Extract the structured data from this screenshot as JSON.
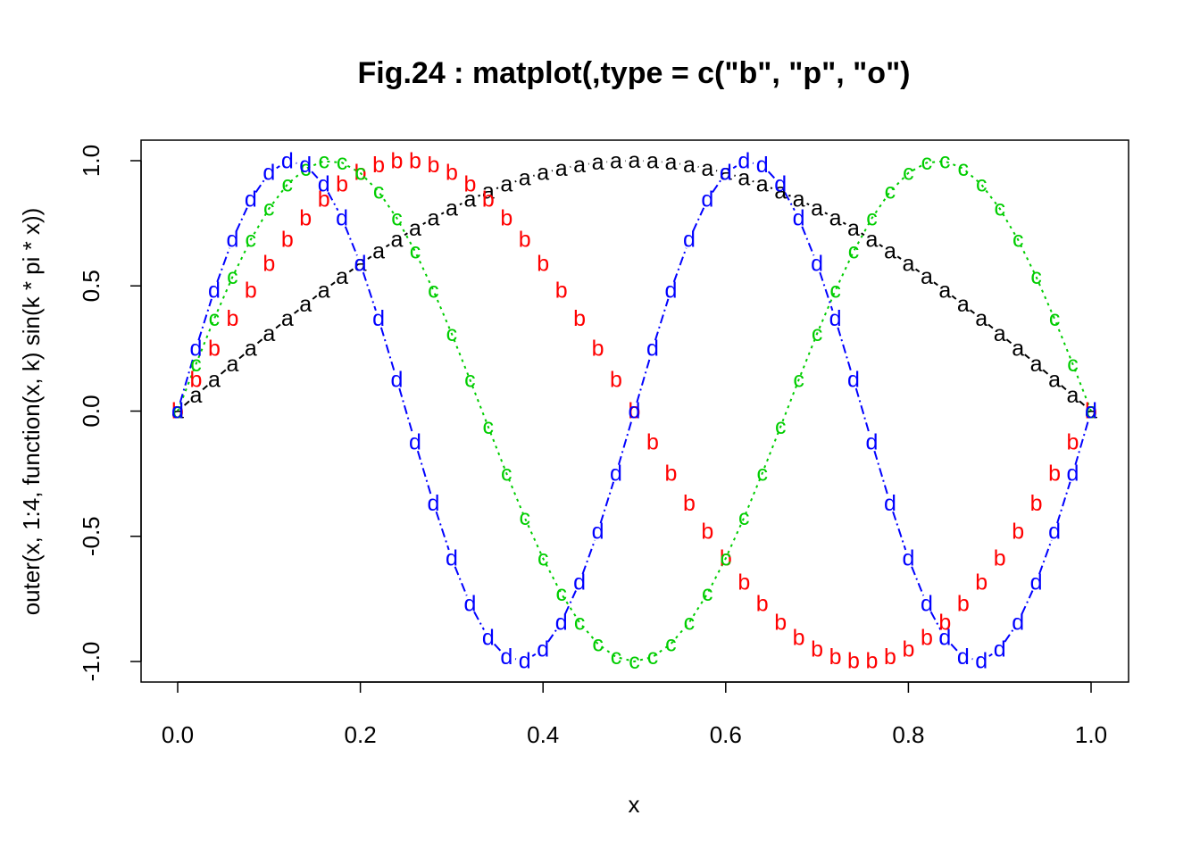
{
  "chart_data": {
    "type": "line",
    "title": "Fig.24 : matplot(,type = c(\"b\", \"p\", \"o\")",
    "xlabel": "x",
    "ylabel": "outer(x, 1:4, function(x, k) sin(k * pi * x))",
    "xlim": [
      0,
      1
    ],
    "ylim": [
      -1,
      1
    ],
    "xticks": [
      "0.0",
      "0.2",
      "0.4",
      "0.6",
      "0.8",
      "1.0"
    ],
    "yticks": [
      "-1.0",
      "-0.5",
      "0.0",
      "0.5",
      "1.0"
    ],
    "grid": false,
    "x": [
      0,
      0.02,
      0.04,
      0.06,
      0.08,
      0.1,
      0.12,
      0.14,
      0.16,
      0.18,
      0.2,
      0.22,
      0.24,
      0.26,
      0.28,
      0.3,
      0.32,
      0.34,
      0.36,
      0.38,
      0.4,
      0.42,
      0.44,
      0.46,
      0.48,
      0.5,
      0.52,
      0.54,
      0.56,
      0.58,
      0.6,
      0.62,
      0.64,
      0.66,
      0.68,
      0.7,
      0.72,
      0.74,
      0.76,
      0.78,
      0.8,
      0.82,
      0.84,
      0.86,
      0.88,
      0.9,
      0.92,
      0.94,
      0.96,
      0.98,
      1.0
    ],
    "series": [
      {
        "marker": "a",
        "color": "#000000",
        "plot_type": "b",
        "k": 1,
        "values": [
          0,
          0.0628,
          0.1253,
          0.1874,
          0.2487,
          0.309,
          0.3681,
          0.4258,
          0.4818,
          0.5358,
          0.5878,
          0.6374,
          0.6845,
          0.729,
          0.7705,
          0.809,
          0.8443,
          0.8763,
          0.9048,
          0.9298,
          0.9511,
          0.9686,
          0.9823,
          0.9921,
          0.998,
          1,
          0.998,
          0.9921,
          0.9823,
          0.9686,
          0.9511,
          0.9298,
          0.9048,
          0.8763,
          0.8443,
          0.809,
          0.7705,
          0.729,
          0.6845,
          0.6374,
          0.5878,
          0.5358,
          0.4818,
          0.4258,
          0.3681,
          0.309,
          0.2487,
          0.1874,
          0.1253,
          0.0628,
          0
        ]
      },
      {
        "marker": "b",
        "color": "#ff0000",
        "plot_type": "p",
        "k": 2,
        "values": [
          0,
          0.1253,
          0.2487,
          0.3681,
          0.4818,
          0.5878,
          0.6845,
          0.7705,
          0.8443,
          0.9048,
          0.9511,
          0.9823,
          0.998,
          0.998,
          0.9823,
          0.9511,
          0.9048,
          0.8443,
          0.7705,
          0.6845,
          0.5878,
          0.4818,
          0.3681,
          0.2487,
          0.1253,
          0,
          -0.1253,
          -0.2487,
          -0.3681,
          -0.4818,
          -0.5878,
          -0.6845,
          -0.7705,
          -0.8443,
          -0.9048,
          -0.9511,
          -0.9823,
          -0.998,
          -0.998,
          -0.9823,
          -0.9511,
          -0.9048,
          -0.8443,
          -0.7705,
          -0.6845,
          -0.5878,
          -0.4818,
          -0.3681,
          -0.2487,
          -0.1253,
          0
        ]
      },
      {
        "marker": "c",
        "color": "#00cd00",
        "plot_type": "o",
        "k": 3,
        "values": [
          0,
          0.1874,
          0.3681,
          0.5358,
          0.6845,
          0.809,
          0.9048,
          0.9686,
          0.998,
          0.9921,
          0.9511,
          0.8763,
          0.7705,
          0.6374,
          0.4818,
          0.309,
          0.1253,
          -0.0628,
          -0.2487,
          -0.4258,
          -0.5878,
          -0.729,
          -0.8443,
          -0.9298,
          -0.9823,
          -1,
          -0.9823,
          -0.9298,
          -0.8443,
          -0.729,
          -0.5878,
          -0.4258,
          -0.2487,
          -0.0628,
          0.1253,
          0.309,
          0.4818,
          0.6374,
          0.7705,
          0.8763,
          0.9511,
          0.9921,
          0.998,
          0.9686,
          0.9048,
          0.809,
          0.6845,
          0.5358,
          0.3681,
          0.1874,
          0
        ]
      },
      {
        "marker": "d",
        "color": "#0000ff",
        "plot_type": "b",
        "k": 4,
        "values": [
          0,
          0.2487,
          0.4818,
          0.6845,
          0.8443,
          0.9511,
          0.998,
          0.9823,
          0.9048,
          0.7705,
          0.5878,
          0.3681,
          0.1253,
          -0.1253,
          -0.3681,
          -0.5878,
          -0.7705,
          -0.9048,
          -0.9823,
          -0.998,
          -0.9511,
          -0.8443,
          -0.6845,
          -0.4818,
          -0.2487,
          0,
          0.2487,
          0.4818,
          0.6845,
          0.8443,
          0.9511,
          0.998,
          0.9823,
          0.9048,
          0.7705,
          0.5878,
          0.3681,
          0.1253,
          -0.1253,
          -0.3681,
          -0.5878,
          -0.7705,
          -0.9048,
          -0.9823,
          -0.998,
          -0.9511,
          -0.8443,
          -0.6845,
          -0.4818,
          -0.2487,
          0
        ]
      }
    ]
  }
}
